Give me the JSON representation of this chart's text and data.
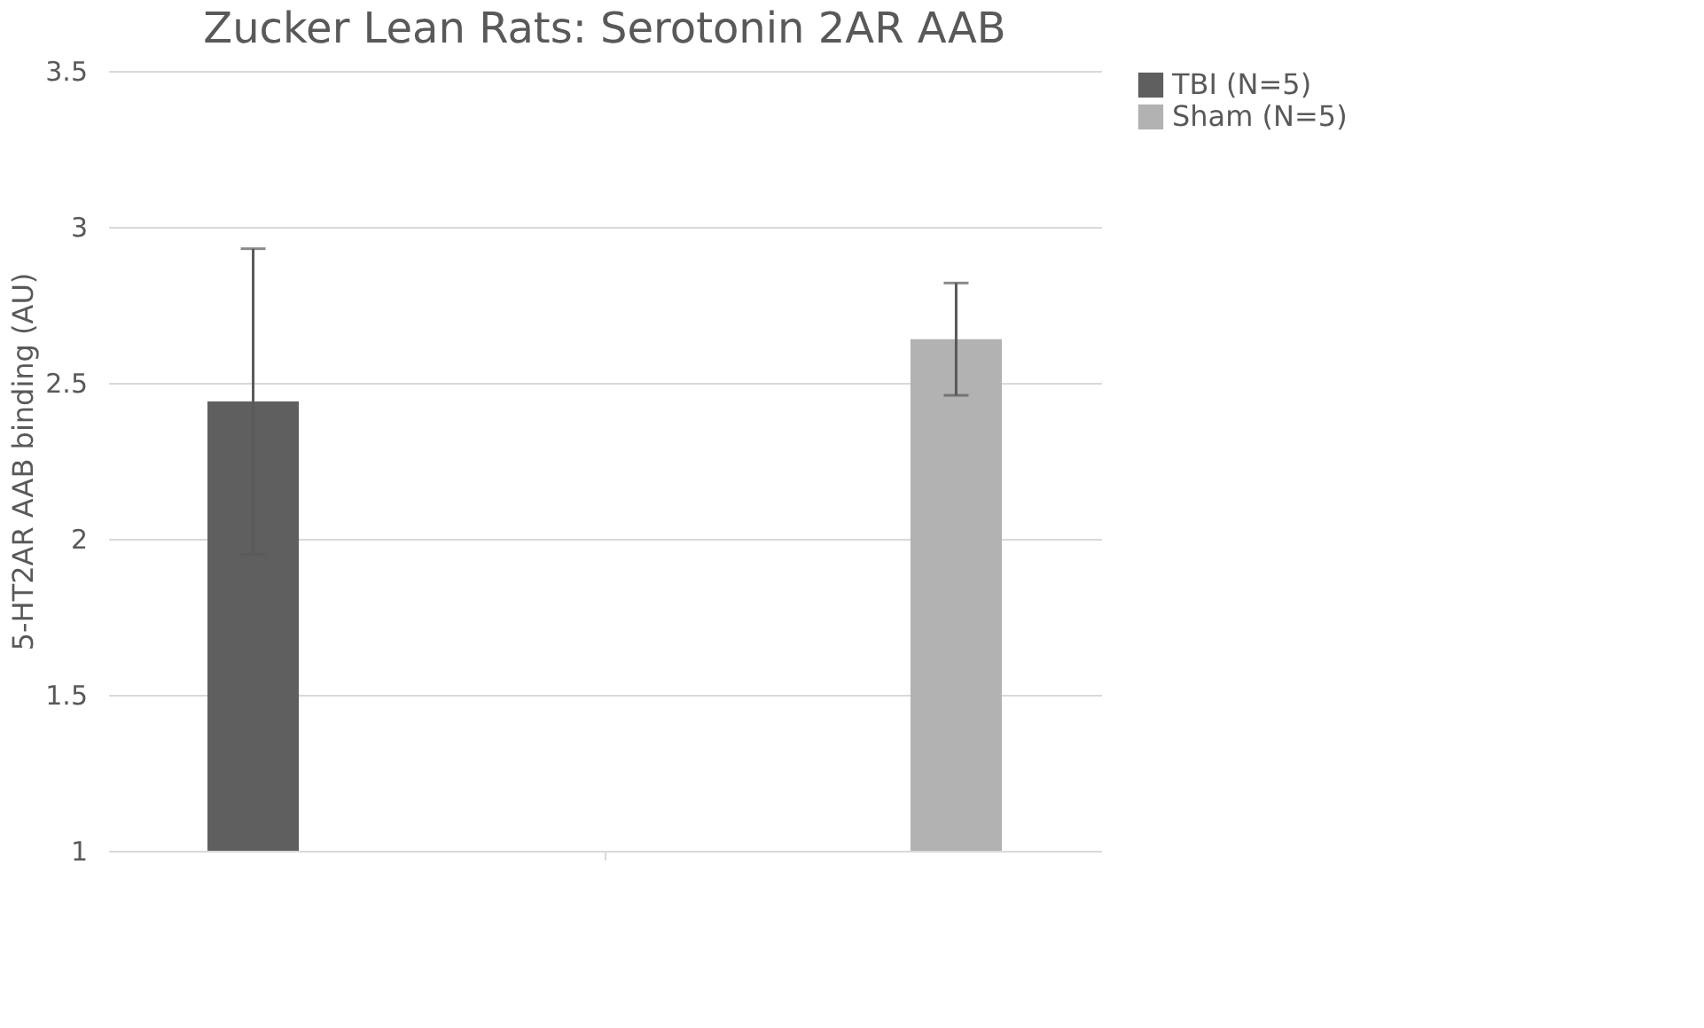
{
  "chart_data": {
    "type": "bar",
    "title": "Zucker Lean Rats: Serotonin 2AR AAB",
    "ylabel": "5-HT2AR AAB binding (AU)",
    "categories": [
      null
    ],
    "series": [
      {
        "name": "TBI (N=5)",
        "color": "#5f5f5f",
        "values": [
          2.44
        ],
        "errors": [
          0.49
        ]
      },
      {
        "name": "Sham (N=5)",
        "color": "#b2b2b2",
        "values": [
          2.64
        ],
        "errors": [
          0.18
        ]
      }
    ],
    "ylim": [
      1,
      3.5
    ],
    "yticks": [
      1,
      1.5,
      2,
      2.5,
      3,
      3.5
    ],
    "grid": "y",
    "legend": "right"
  }
}
